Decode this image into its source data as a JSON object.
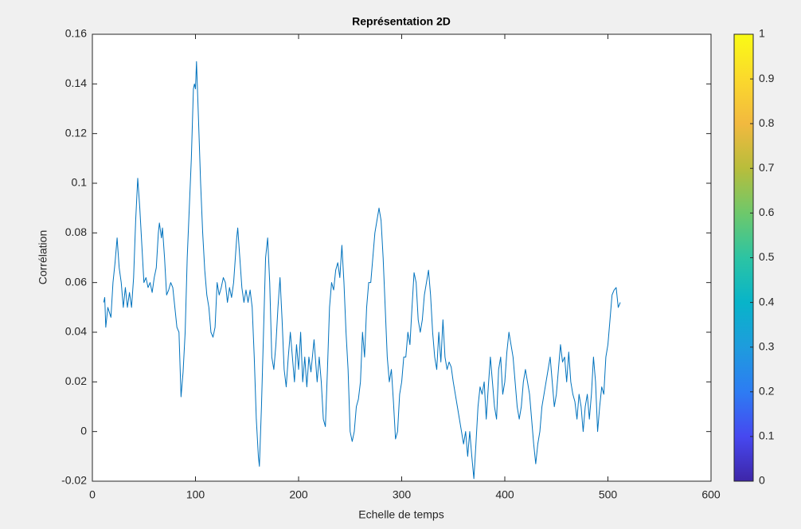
{
  "chart_data": {
    "type": "line",
    "title": "Représentation 2D",
    "xlabel": "Echelle de temps",
    "ylabel": "Corrélation",
    "color": "#0072bd",
    "x": [
      11,
      12,
      13,
      15,
      18,
      20,
      22,
      24,
      26,
      28,
      30,
      32,
      34,
      36,
      38,
      40,
      42,
      44,
      46,
      48,
      50,
      52,
      54,
      56,
      58,
      60,
      62,
      64,
      65,
      67,
      68,
      70,
      72,
      74,
      76,
      78,
      80,
      82,
      84,
      86,
      88,
      90,
      92,
      94,
      96,
      98,
      99,
      100,
      101,
      103,
      105,
      107,
      109,
      111,
      113,
      115,
      117,
      119,
      121,
      123,
      125,
      127,
      129,
      131,
      133,
      135,
      137,
      140,
      141,
      143,
      145,
      147,
      149,
      151,
      153,
      155,
      157,
      159,
      161,
      162,
      164,
      166,
      168,
      170,
      172,
      174,
      176,
      178,
      180,
      182,
      184,
      186,
      188,
      190,
      192,
      194,
      196,
      198,
      200,
      202,
      204,
      206,
      208,
      210,
      212,
      215,
      218,
      220,
      222,
      224,
      226,
      228,
      230,
      232,
      234,
      236,
      238,
      240,
      242,
      244,
      246,
      248,
      250,
      252,
      254,
      256,
      258,
      260,
      262,
      264,
      266,
      268,
      270,
      272,
      274,
      276,
      278,
      280,
      282,
      284,
      286,
      288,
      290,
      292,
      294,
      296,
      298,
      300,
      302,
      304,
      306,
      308,
      310,
      312,
      314,
      316,
      318,
      320,
      322,
      324,
      326,
      328,
      330,
      332,
      334,
      336,
      338,
      340,
      342,
      344,
      346,
      348,
      350,
      352,
      354,
      356,
      358,
      360,
      362,
      364,
      366,
      368,
      370,
      372,
      374,
      376,
      378,
      380,
      382,
      384,
      386,
      388,
      390,
      392,
      394,
      396,
      398,
      400,
      402,
      404,
      406,
      408,
      410,
      412,
      414,
      416,
      418,
      420,
      422,
      424,
      426,
      428,
      430,
      432,
      434,
      436,
      438,
      440,
      442,
      444,
      446,
      448,
      450,
      452,
      454,
      456,
      458,
      460,
      462,
      464,
      466,
      468,
      470,
      472,
      474,
      476,
      478,
      480,
      482,
      484,
      486,
      488,
      490,
      492,
      494,
      496,
      498,
      500,
      502,
      504,
      506,
      508,
      510,
      512
    ],
    "values": [
      0.052,
      0.054,
      0.042,
      0.05,
      0.046,
      0.06,
      0.068,
      0.078,
      0.066,
      0.06,
      0.05,
      0.058,
      0.05,
      0.056,
      0.05,
      0.062,
      0.085,
      0.102,
      0.09,
      0.075,
      0.06,
      0.062,
      0.058,
      0.06,
      0.056,
      0.062,
      0.066,
      0.08,
      0.084,
      0.078,
      0.082,
      0.07,
      0.055,
      0.057,
      0.06,
      0.058,
      0.05,
      0.042,
      0.04,
      0.014,
      0.024,
      0.04,
      0.07,
      0.09,
      0.11,
      0.138,
      0.14,
      0.138,
      0.149,
      0.125,
      0.1,
      0.08,
      0.065,
      0.055,
      0.05,
      0.04,
      0.038,
      0.042,
      0.06,
      0.055,
      0.058,
      0.062,
      0.06,
      0.052,
      0.058,
      0.054,
      0.06,
      0.078,
      0.082,
      0.07,
      0.058,
      0.052,
      0.057,
      0.052,
      0.057,
      0.05,
      0.03,
      0.005,
      -0.01,
      -0.014,
      0.01,
      0.04,
      0.07,
      0.078,
      0.06,
      0.03,
      0.025,
      0.035,
      0.05,
      0.062,
      0.045,
      0.025,
      0.018,
      0.03,
      0.04,
      0.03,
      0.02,
      0.035,
      0.025,
      0.04,
      0.02,
      0.03,
      0.018,
      0.03,
      0.024,
      0.037,
      0.02,
      0.03,
      0.02,
      0.005,
      0.002,
      0.025,
      0.05,
      0.06,
      0.057,
      0.065,
      0.068,
      0.062,
      0.075,
      0.06,
      0.04,
      0.025,
      0.0,
      -0.004,
      0.0,
      0.01,
      0.013,
      0.02,
      0.04,
      0.03,
      0.05,
      0.06,
      0.06,
      0.07,
      0.08,
      0.085,
      0.09,
      0.085,
      0.07,
      0.05,
      0.03,
      0.02,
      0.025,
      0.012,
      -0.003,
      0.0,
      0.015,
      0.02,
      0.03,
      0.03,
      0.04,
      0.035,
      0.05,
      0.064,
      0.06,
      0.045,
      0.04,
      0.045,
      0.055,
      0.06,
      0.065,
      0.055,
      0.04,
      0.03,
      0.025,
      0.04,
      0.028,
      0.045,
      0.03,
      0.025,
      0.028,
      0.026,
      0.02,
      0.015,
      0.01,
      0.005,
      0.0,
      -0.005,
      0.0,
      -0.01,
      0.0,
      -0.01,
      -0.019,
      -0.005,
      0.01,
      0.018,
      0.015,
      0.02,
      0.005,
      0.018,
      0.03,
      0.02,
      0.01,
      0.005,
      0.025,
      0.03,
      0.015,
      0.02,
      0.032,
      0.04,
      0.035,
      0.03,
      0.02,
      0.01,
      0.005,
      0.01,
      0.02,
      0.025,
      0.02,
      0.015,
      0.005,
      -0.005,
      -0.013,
      -0.005,
      0.0,
      0.01,
      0.015,
      0.02,
      0.025,
      0.03,
      0.02,
      0.01,
      0.015,
      0.025,
      0.035,
      0.028,
      0.03,
      0.02,
      0.032,
      0.02,
      0.015,
      0.012,
      0.005,
      0.015,
      0.01,
      0.0,
      0.01,
      0.015,
      0.005,
      0.015,
      0.03,
      0.02,
      0.0,
      0.01,
      0.018,
      0.015,
      0.03,
      0.035,
      0.045,
      0.055,
      0.057,
      0.058,
      0.05,
      0.052
    ],
    "xlim": [
      0,
      600
    ],
    "xticks": [
      0,
      100,
      200,
      300,
      400,
      500,
      600
    ],
    "ylim": [
      -0.02,
      0.16
    ],
    "yticks": [
      -0.02,
      0,
      0.02,
      0.04,
      0.06,
      0.08,
      0.1,
      0.12,
      0.14,
      0.16
    ],
    "grid": false,
    "colorbar": {
      "lim": [
        0,
        1
      ],
      "ticks": [
        0,
        0.1,
        0.2,
        0.3,
        0.4,
        0.5,
        0.6,
        0.7,
        0.8,
        0.9,
        1
      ],
      "colors": [
        "#3e26a8",
        "#4648f0",
        "#2d7cf3",
        "#1e9cdd",
        "#08b4c9",
        "#2cc4a3",
        "#6ec86b",
        "#b8bd3b",
        "#f2b93f",
        "#fbd92c",
        "#f9fb15"
      ]
    }
  }
}
